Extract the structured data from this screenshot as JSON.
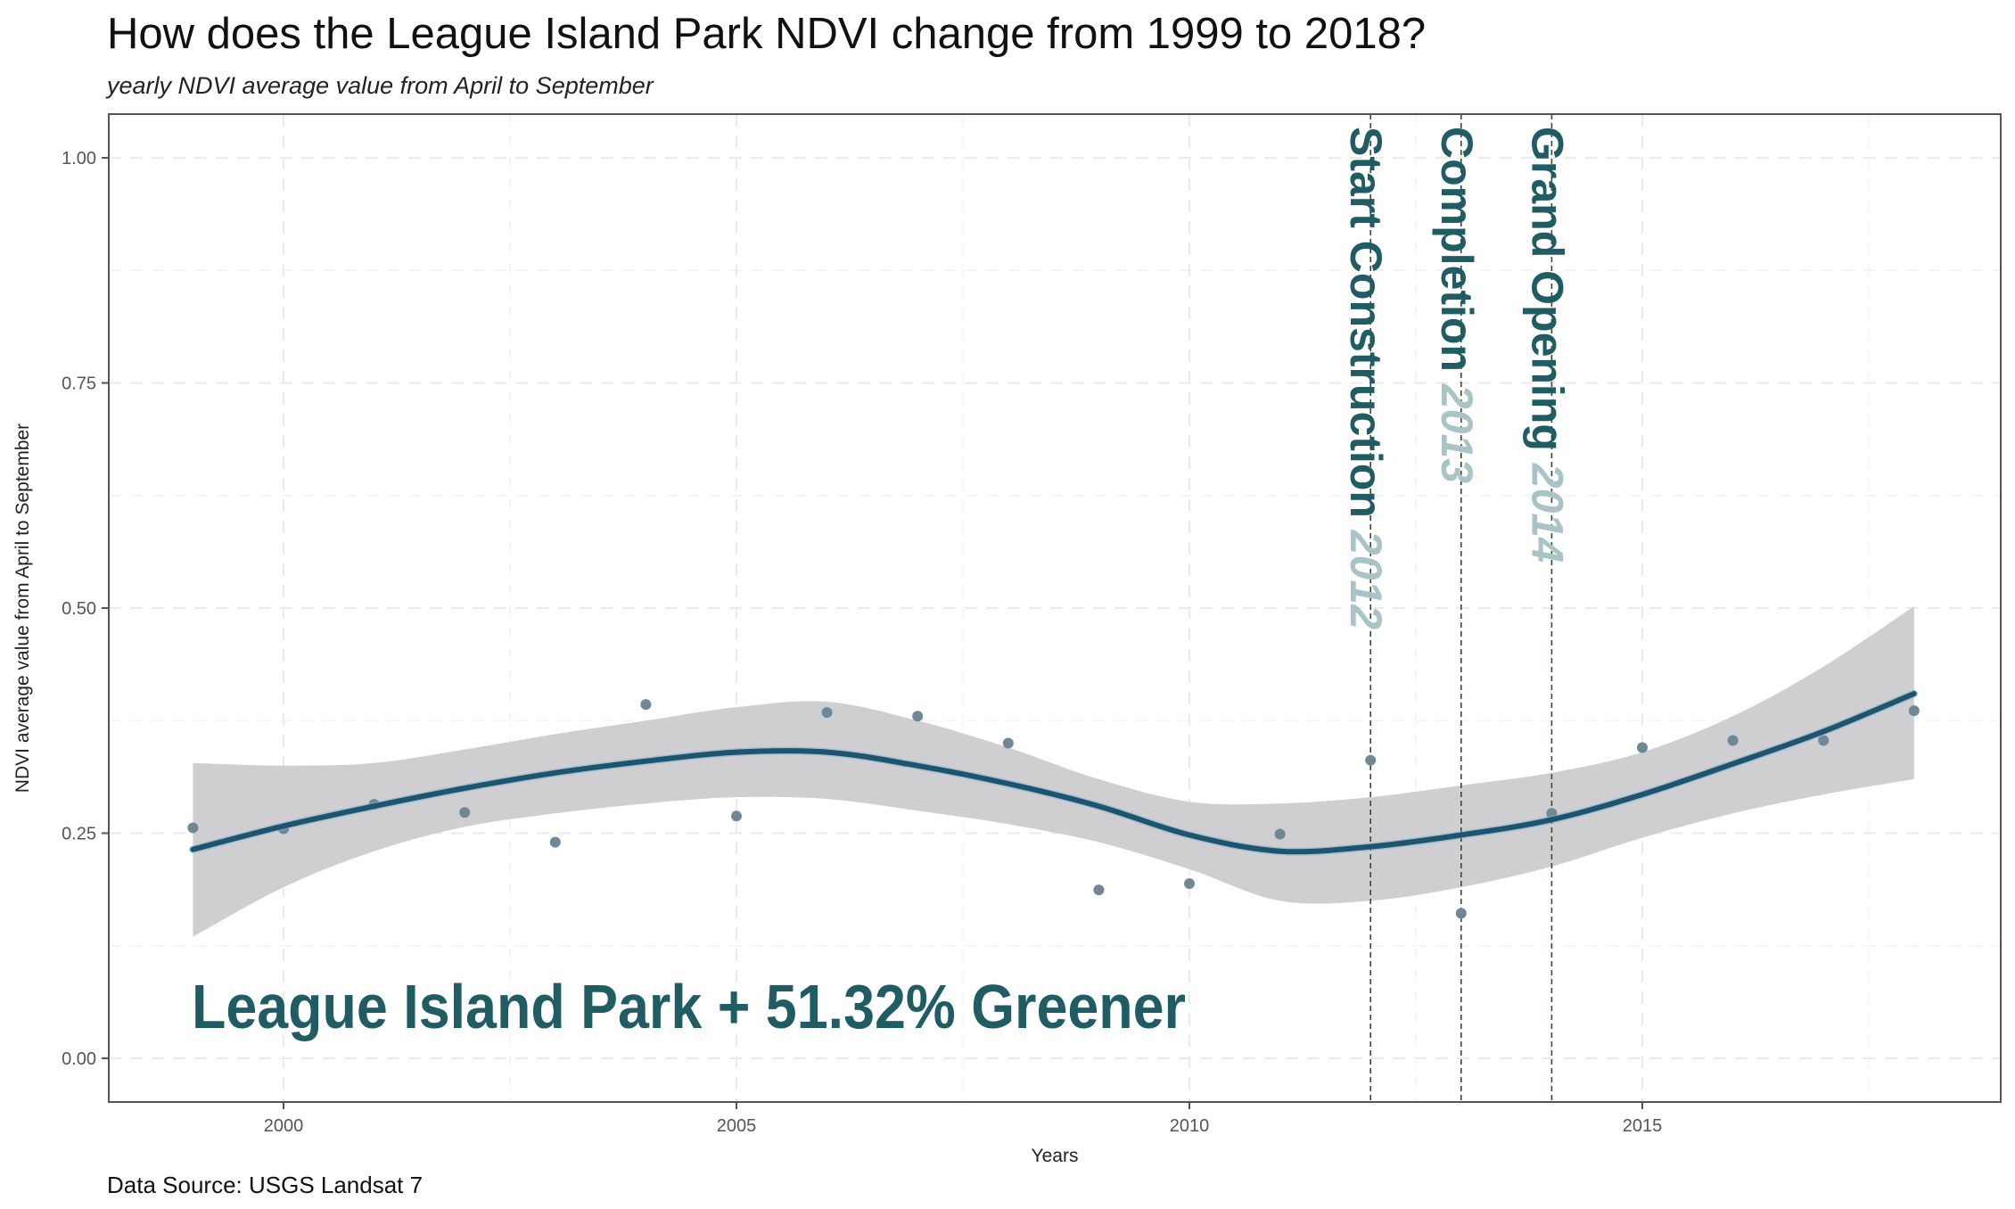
{
  "chart_data": {
    "type": "scatter",
    "title": "How does the League Island Park NDVI change from 1999 to 2018?",
    "subtitle": "yearly NDVI average value from April to September",
    "xlabel": "Years",
    "ylabel": "NDVI average value from April to September",
    "caption": "Data Source: USGS Landsat 7",
    "xlim": [
      1998.0,
      2018.9
    ],
    "ylim": [
      -0.05,
      1.05
    ],
    "x_ticks": [
      2000,
      2005,
      2010,
      2015
    ],
    "x_tick_labels": [
      "2000",
      "2005",
      "2010",
      "2015"
    ],
    "y_ticks": [
      0,
      0.25,
      0.5,
      0.75,
      1.0
    ],
    "y_tick_labels": [
      "0.00",
      "0.25",
      "0.50",
      "0.75",
      "1.00"
    ],
    "grid": true,
    "series": [
      {
        "name": "NDVI",
        "type": "scatter",
        "color": "#6f8796",
        "x": [
          1999,
          2000,
          2001,
          2002,
          2003,
          2004,
          2005,
          2006,
          2007,
          2008,
          2009,
          2010,
          2011,
          2012,
          2013,
          2014,
          2015,
          2016,
          2017,
          2018
        ],
        "y": [
          0.256,
          0.255,
          0.282,
          0.273,
          0.24,
          0.393,
          0.269,
          0.384,
          0.38,
          0.35,
          0.187,
          0.194,
          0.249,
          0.331,
          0.161,
          0.272,
          0.345,
          0.353,
          0.353,
          0.386
        ]
      },
      {
        "name": "Smooth fit",
        "type": "line",
        "color": "#1d5470",
        "x": [
          1999,
          2000,
          2001,
          2002,
          2003,
          2004,
          2005,
          2006,
          2007,
          2008,
          2009,
          2010,
          2011,
          2012,
          2013,
          2014,
          2015,
          2016,
          2017,
          2018
        ],
        "y": [
          0.232,
          0.258,
          0.28,
          0.3,
          0.317,
          0.33,
          0.34,
          0.34,
          0.325,
          0.305,
          0.28,
          0.248,
          0.23,
          0.235,
          0.248,
          0.265,
          0.293,
          0.327,
          0.363,
          0.405
        ],
        "ci_upper": [
          0.328,
          0.325,
          0.328,
          0.343,
          0.36,
          0.375,
          0.39,
          0.396,
          0.375,
          0.345,
          0.31,
          0.285,
          0.283,
          0.29,
          0.303,
          0.317,
          0.34,
          0.38,
          0.435,
          0.502
        ],
        "ci_lower": [
          0.135,
          0.19,
          0.23,
          0.257,
          0.272,
          0.283,
          0.29,
          0.288,
          0.275,
          0.26,
          0.24,
          0.21,
          0.175,
          0.175,
          0.19,
          0.213,
          0.245,
          0.272,
          0.293,
          0.31
        ],
        "ci_color": "#cfcfd1"
      }
    ],
    "events": [
      {
        "x": 2012,
        "label": "Start Construction",
        "year_label": "2012"
      },
      {
        "x": 2013,
        "label": "Completion",
        "year_label": "2013"
      },
      {
        "x": 2014,
        "label": "Grand Opening",
        "year_label": "2014"
      }
    ],
    "annotations": [
      {
        "text": "League Island Park + 51.32% Greener",
        "x": 1999,
        "y": 0.06
      }
    ],
    "colors": {
      "accent": "#1f5c63",
      "year": "#a9c4c7",
      "event_line": "#3b4a2e",
      "panel_border": "#555555",
      "grid": "#ebebeb"
    }
  }
}
